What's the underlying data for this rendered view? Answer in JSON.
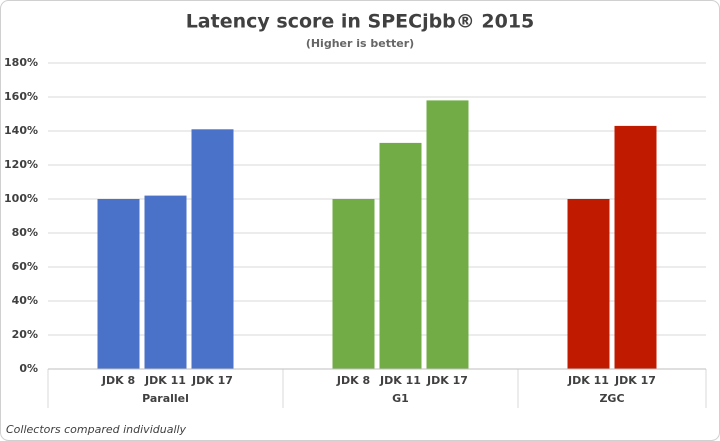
{
  "chart_data": {
    "type": "grouped-bar",
    "title": "Latency score in SPECjbb® 2015",
    "subtitle": "(Higher is better)",
    "footnote": "Collectors compared individually",
    "groups": [
      {
        "name": "Parallel",
        "color": "#4a72c8",
        "categories": [
          "JDK 8",
          "JDK 11",
          "JDK 17"
        ],
        "values": [
          100,
          102,
          141
        ]
      },
      {
        "name": "G1",
        "color": "#72ac46",
        "categories": [
          "JDK 8",
          "JDK 11",
          "JDK 17"
        ],
        "values": [
          100,
          133,
          158
        ]
      },
      {
        "name": "ZGC",
        "color": "#c01b00",
        "categories": [
          "JDK 11",
          "JDK 17"
        ],
        "values": [
          100,
          143
        ]
      }
    ],
    "ylim": [
      0,
      180
    ],
    "yticks": [
      {
        "value": 0,
        "label": "0%"
      },
      {
        "value": 20,
        "label": "20%"
      },
      {
        "value": 40,
        "label": "40%"
      },
      {
        "value": 60,
        "label": "60%"
      },
      {
        "value": 80,
        "label": "80%"
      },
      {
        "value": 100,
        "label": "100%"
      },
      {
        "value": 120,
        "label": "120%"
      },
      {
        "value": 140,
        "label": "140%"
      },
      {
        "value": 160,
        "label": "160%"
      },
      {
        "value": 180,
        "label": "180%"
      }
    ],
    "grid": true
  }
}
